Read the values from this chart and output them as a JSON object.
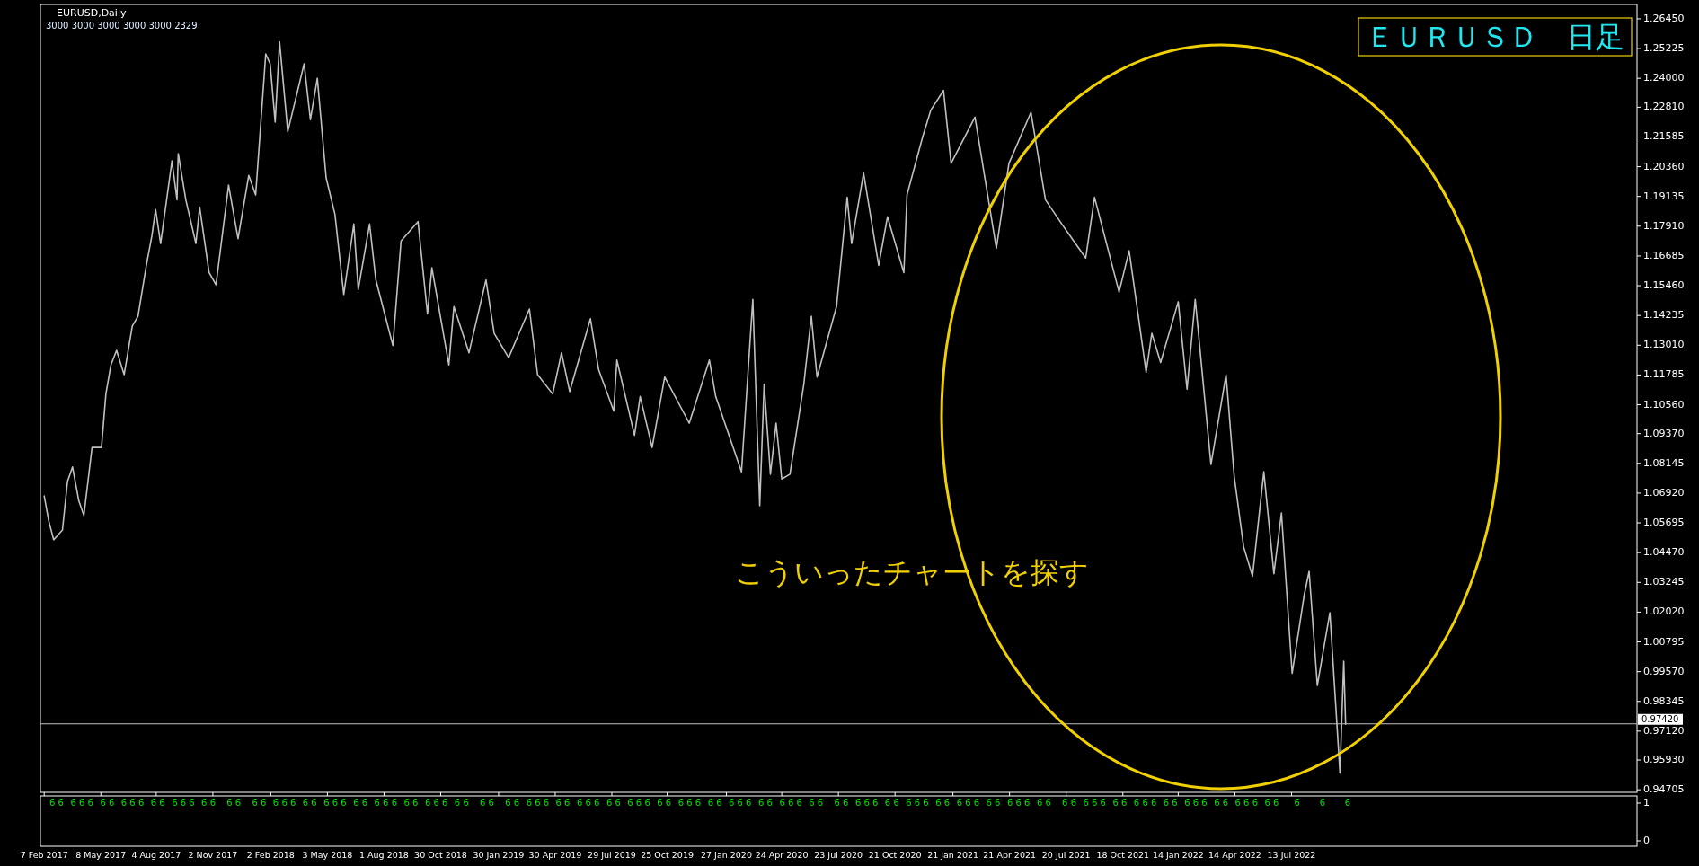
{
  "chart_data": [
    {
      "type": "line",
      "title": "EURUSD,Daily",
      "subtitle": "3000 3000 3000 3000 3000 2329",
      "annotations": [
        "ＥＵＲＵＳＤ　日足",
        "こういったチャートを探す"
      ],
      "x": [
        "2017-02-07",
        "2017-02-14",
        "2017-02-22",
        "2017-03-01",
        "2017-03-08",
        "2017-03-16",
        "2017-03-24",
        "2017-04-03",
        "2017-04-11",
        "2017-04-24",
        "2017-05-09",
        "2017-05-16",
        "2017-05-24",
        "2017-06-02",
        "2017-06-14",
        "2017-06-27",
        "2017-07-06",
        "2017-07-20",
        "2017-07-28",
        "2017-08-03",
        "2017-08-11",
        "2017-08-29",
        "2017-09-06",
        "2017-09-08",
        "2017-09-20",
        "2017-10-06",
        "2017-10-12",
        "2017-10-27",
        "2017-11-07",
        "2017-11-27",
        "2017-12-12",
        "2017-12-29",
        "2018-01-09",
        "2018-01-25",
        "2018-02-01",
        "2018-02-09",
        "2018-02-16",
        "2018-03-01",
        "2018-03-27",
        "2018-04-06",
        "2018-04-17",
        "2018-05-01",
        "2018-05-15",
        "2018-05-29",
        "2018-06-14",
        "2018-06-21",
        "2018-07-09",
        "2018-07-19",
        "2018-08-15",
        "2018-08-28",
        "2018-09-24",
        "2018-10-09",
        "2018-10-16",
        "2018-11-12",
        "2018-11-20",
        "2018-12-14",
        "2019-01-10",
        "2019-01-23",
        "2019-02-15",
        "2019-03-20",
        "2019-04-02",
        "2019-04-26",
        "2019-05-10",
        "2019-05-23",
        "2019-06-25",
        "2019-07-08",
        "2019-08-01",
        "2019-08-06",
        "2019-09-03",
        "2019-09-12",
        "2019-10-01",
        "2019-10-21",
        "2019-11-29",
        "2019-12-31",
        "2020-01-10",
        "2020-02-20",
        "2020-03-09",
        "2020-03-20",
        "2020-03-27",
        "2020-04-06",
        "2020-04-15",
        "2020-04-24",
        "2020-05-07",
        "2020-05-29",
        "2020-06-10",
        "2020-06-19",
        "2020-07-20",
        "2020-08-06",
        "2020-08-13",
        "2020-09-01",
        "2020-09-25",
        "2020-10-09",
        "2020-11-04",
        "2020-11-09",
        "2020-12-04",
        "2020-12-17",
        "2021-01-06",
        "2021-01-18",
        "2021-02-25",
        "2021-03-31",
        "2021-04-20",
        "2021-05-25",
        "2021-06-17",
        "2021-06-30",
        "2021-07-13",
        "2021-08-20",
        "2021-09-03",
        "2021-10-12",
        "2021-10-28",
        "2021-11-24",
        "2021-12-03",
        "2021-12-17",
        "2022-01-14",
        "2022-01-28",
        "2022-02-10",
        "2022-03-07",
        "2022-03-31",
        "2022-04-13",
        "2022-04-28",
        "2022-05-12",
        "2022-05-30",
        "2022-06-15",
        "2022-06-27",
        "2022-07-14",
        "2022-08-02",
        "2022-08-10",
        "2022-08-23",
        "2022-09-12",
        "2022-09-28",
        "2022-10-04",
        "2022-10-07"
      ],
      "series": [
        {
          "color": "#c0c0c0",
          "values": [
            1.068,
            1.058,
            1.05,
            1.052,
            1.054,
            1.074,
            1.08,
            1.066,
            1.06,
            1.088,
            1.088,
            1.11,
            1.122,
            1.128,
            1.118,
            1.138,
            1.142,
            1.164,
            1.175,
            1.186,
            1.172,
            1.206,
            1.19,
            1.209,
            1.19,
            1.172,
            1.187,
            1.16,
            1.155,
            1.196,
            1.174,
            1.2,
            1.192,
            1.25,
            1.246,
            1.222,
            1.255,
            1.218,
            1.246,
            1.223,
            1.24,
            1.199,
            1.184,
            1.151,
            1.18,
            1.153,
            1.18,
            1.157,
            1.13,
            1.173,
            1.181,
            1.143,
            1.162,
            1.122,
            1.146,
            1.127,
            1.157,
            1.135,
            1.125,
            1.145,
            1.118,
            1.11,
            1.127,
            1.111,
            1.141,
            1.12,
            1.103,
            1.124,
            1.093,
            1.109,
            1.088,
            1.117,
            1.098,
            1.124,
            1.109,
            1.078,
            1.149,
            1.064,
            1.114,
            1.077,
            1.098,
            1.075,
            1.077,
            1.114,
            1.142,
            1.117,
            1.146,
            1.191,
            1.172,
            1.201,
            1.163,
            1.183,
            1.16,
            1.192,
            1.216,
            1.227,
            1.235,
            1.205,
            1.224,
            1.17,
            1.205,
            1.226,
            1.19,
            1.185,
            1.18,
            1.166,
            1.191,
            1.152,
            1.169,
            1.119,
            1.135,
            1.123,
            1.148,
            1.112,
            1.149,
            1.081,
            1.118,
            1.076,
            1.047,
            1.035,
            1.078,
            1.036,
            1.061,
            0.995,
            1.027,
            1.037,
            0.99,
            1.02,
            0.954,
            1.0,
            0.974
          ]
        }
      ],
      "xlim": [
        "2017-02-01",
        "2024-01-13"
      ],
      "xticks": [
        {
          "value": "2017-02-07",
          "label": "7 Feb 2017"
        },
        {
          "value": "2017-05-08",
          "label": "8 May 2017"
        },
        {
          "value": "2017-08-04",
          "label": "4 Aug 2017"
        },
        {
          "value": "2017-11-02",
          "label": "2 Nov 2017"
        },
        {
          "value": "2018-02-02",
          "label": "2 Feb 2018"
        },
        {
          "value": "2018-05-03",
          "label": "3 May 2018"
        },
        {
          "value": "2018-08-01",
          "label": "1 Aug 2018"
        },
        {
          "value": "2018-10-30",
          "label": "30 Oct 2018"
        },
        {
          "value": "2019-01-30",
          "label": "30 Jan 2019"
        },
        {
          "value": "2019-04-30",
          "label": "30 Apr 2019"
        },
        {
          "value": "2019-07-29",
          "label": "29 Jul 2019"
        },
        {
          "value": "2019-10-25",
          "label": "25 Oct 2019"
        },
        {
          "value": "2020-01-27",
          "label": "27 Jan 2020"
        },
        {
          "value": "2020-04-24",
          "label": "24 Apr 2020"
        },
        {
          "value": "2020-07-23",
          "label": "23 Jul 2020"
        },
        {
          "value": "2020-10-21",
          "label": "21 Oct 2020"
        },
        {
          "value": "2021-01-21",
          "label": "21 Jan 2021"
        },
        {
          "value": "2021-04-21",
          "label": "21 Apr 2021"
        },
        {
          "value": "2021-07-20",
          "label": "20 Jul 2021"
        },
        {
          "value": "2021-10-18",
          "label": "18 Oct 2021"
        },
        {
          "value": "2022-01-14",
          "label": "14 Jan 2022"
        },
        {
          "value": "2022-04-14",
          "label": "14 Apr 2022"
        },
        {
          "value": "2022-07-13",
          "label": "13 Jul 2022"
        }
      ],
      "ylim": [
        0.946,
        1.2704
      ],
      "yticks": [
        {
          "value": 0.94705,
          "label": "0.94705"
        },
        {
          "value": 0.9593,
          "label": "0.95930"
        },
        {
          "value": 0.9712,
          "label": "0.97120"
        },
        {
          "value": 0.98345,
          "label": "0.98345"
        },
        {
          "value": 0.9957,
          "label": "0.99570"
        },
        {
          "value": 1.00795,
          "label": "1.00795"
        },
        {
          "value": 1.0202,
          "label": "1.02020"
        },
        {
          "value": 1.03245,
          "label": "1.03245"
        },
        {
          "value": 1.0447,
          "label": "1.04470"
        },
        {
          "value": 1.05695,
          "label": "1.05695"
        },
        {
          "value": 1.0692,
          "label": "1.06920"
        },
        {
          "value": 1.08145,
          "label": "1.08145"
        },
        {
          "value": 1.0937,
          "label": "1.09370"
        },
        {
          "value": 1.1056,
          "label": "1.10560"
        },
        {
          "value": 1.11785,
          "label": "1.11785"
        },
        {
          "value": 1.1301,
          "label": "1.13010"
        },
        {
          "value": 1.14235,
          "label": "1.14235"
        },
        {
          "value": 1.1546,
          "label": "1.15460"
        },
        {
          "value": 1.16685,
          "label": "1.16685"
        },
        {
          "value": 1.1791,
          "label": "1.17910"
        },
        {
          "value": 1.19135,
          "label": "1.19135"
        },
        {
          "value": 1.2036,
          "label": "1.20360"
        },
        {
          "value": 1.21585,
          "label": "1.21585"
        },
        {
          "value": 1.2281,
          "label": "1.22810"
        },
        {
          "value": 1.24,
          "label": "1.24000"
        },
        {
          "value": 1.25225,
          "label": "1.25225"
        },
        {
          "value": 1.2645,
          "label": "1.26450"
        }
      ],
      "ref_lines": [
        {
          "axis": "y",
          "value": 0.9742,
          "label": "0.97420",
          "color": "#c0c0c0"
        }
      ],
      "marker": "none",
      "line_style": "solid"
    },
    {
      "type": "other",
      "annotations": [
        "1",
        "0",
        "6 6",
        "6 6 6",
        "6 6",
        "6 6 6",
        "6 6",
        "6 6 6",
        "6 6",
        "6 6",
        "6 6",
        "6 6 6",
        "6 6",
        "6 6 6",
        "6 6",
        "6 6 6",
        "6 6",
        "6 6 6",
        "6 6",
        "6 6",
        "6 6",
        "6 6 6",
        "6 6",
        "6 6 6",
        "6 6",
        "6 6 6",
        "6 6",
        "6 6 6",
        "6 6",
        "6 6 6",
        "6 6",
        "6 6 6",
        "6 6",
        "6 6",
        "6 6 6",
        "6 6",
        "6 6 6",
        "6 6",
        "6 6 6",
        "6 6",
        "6 6 6",
        "6 6",
        "6 6",
        "6 6 6",
        "6 6",
        "6 6 6",
        "6 6",
        "6 6 6",
        "6 6",
        "6 6 6",
        "6 6",
        "6",
        "6",
        "6"
      ]
    }
  ]
}
